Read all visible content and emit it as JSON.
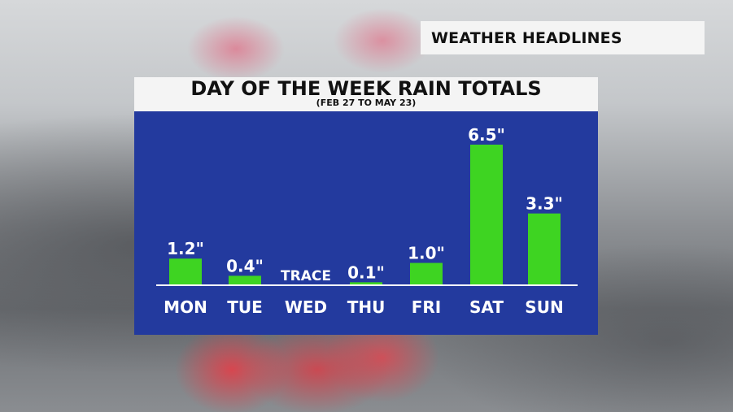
{
  "header": {
    "label": "WEATHER HEADLINES"
  },
  "chart_data": {
    "type": "bar",
    "title": "DAY OF THE WEEK RAIN TOTALS",
    "subtitle": "(FEB 27 TO MAY 23)",
    "categories": [
      "MON",
      "TUE",
      "WED",
      "THU",
      "FRI",
      "SAT",
      "SUN"
    ],
    "values": [
      1.2,
      0.4,
      0,
      0.1,
      1.0,
      6.5,
      3.3
    ],
    "value_labels": [
      "1.2\"",
      "0.4\"",
      "TRACE",
      "0.1\"",
      "1.0\"",
      "6.5\"",
      "3.3\""
    ],
    "ylim": [
      0,
      6.5
    ],
    "grid": false,
    "xlabel": "",
    "ylabel": "",
    "colors": {
      "bar": "#3ed422",
      "panel": "#233a9e",
      "text": "#ffffff",
      "baseline": "#ffffff"
    }
  }
}
